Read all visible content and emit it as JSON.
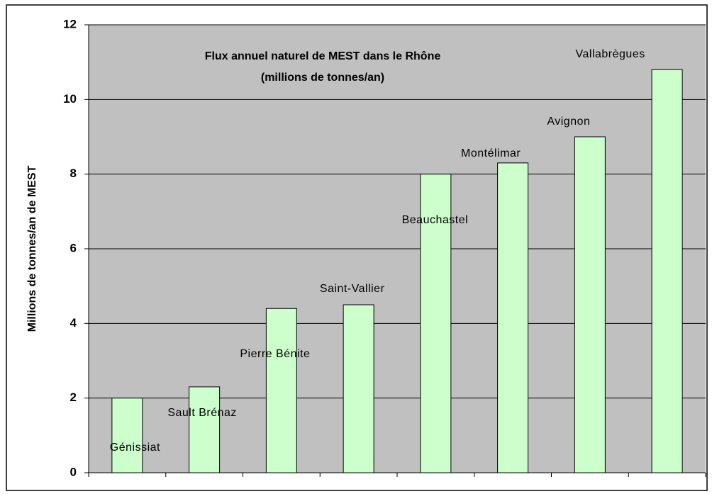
{
  "chart_data": {
    "type": "bar",
    "title": [
      "Flux annuel naturel de MEST dans le Rhône",
      "(millions de tonnes/an)"
    ],
    "y_label": "Millions de tonnes/an de MEST",
    "categories": [
      "Génissiat",
      "Sault Brénaz",
      "Pierre Bénite",
      "Saint-Vallier",
      "Beauchastel",
      "Montélimar",
      "Avignon",
      "Vallabrègues"
    ],
    "values": [
      2.0,
      2.3,
      4.4,
      4.5,
      8.0,
      8.3,
      9.0,
      10.8
    ],
    "color": "#ccffcc",
    "ylim": [
      0,
      12
    ],
    "yticks": [
      0,
      2,
      4,
      6,
      8,
      10,
      12
    ],
    "grid": true
  }
}
